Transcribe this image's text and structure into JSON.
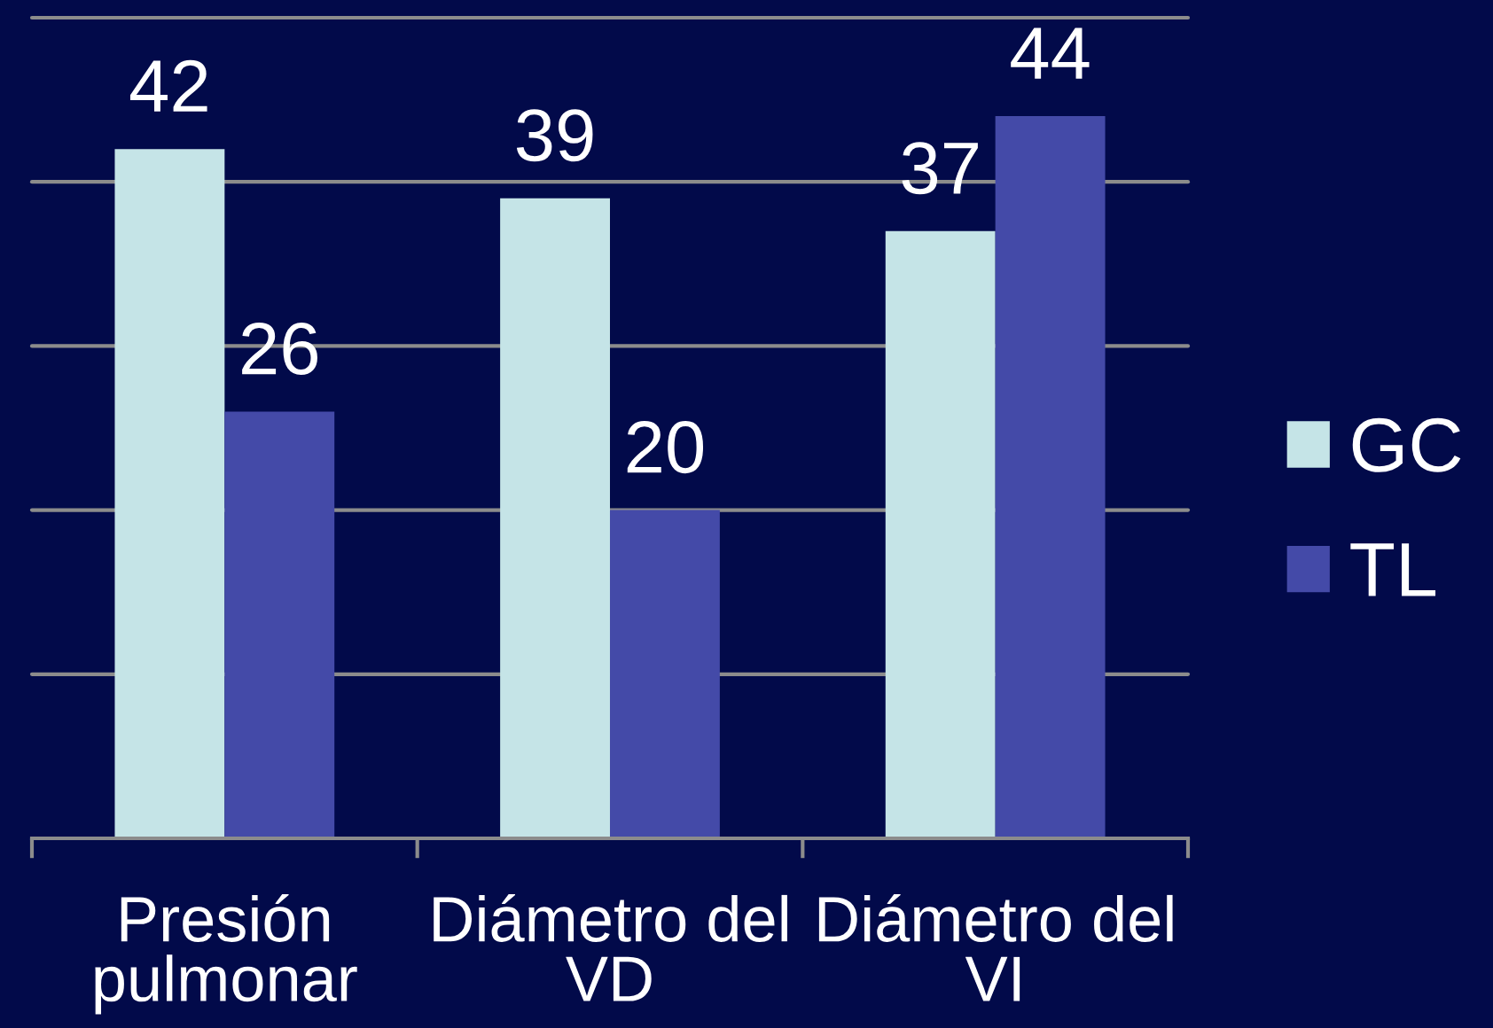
{
  "chart_data": {
    "type": "bar",
    "categories": [
      "Presión\npulmonar",
      "Diámetro del\nVD",
      "Diámetro del\nVI"
    ],
    "series": [
      {
        "name": "GC",
        "color": "#c5e4e7",
        "values": [
          42,
          39,
          37
        ]
      },
      {
        "name": "TL",
        "color": "#444aa8",
        "values": [
          26,
          20,
          44
        ]
      }
    ],
    "ylim": [
      0,
      50
    ],
    "yticks": [
      {
        "value": 0,
        "label": null
      },
      {
        "value": 10,
        "label": null
      },
      {
        "value": 20,
        "label": null
      },
      {
        "value": 30,
        "label": null
      },
      {
        "value": 40,
        "label": null
      },
      {
        "value": 50,
        "label": null
      }
    ],
    "grid": "y",
    "legend": "right",
    "tick_labels": "x",
    "data_labels": true
  }
}
